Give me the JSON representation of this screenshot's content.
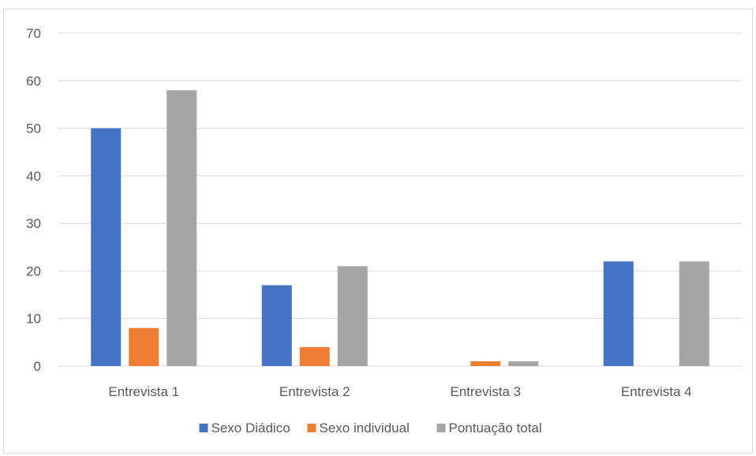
{
  "chart_data": {
    "type": "bar",
    "title": "",
    "xlabel": "",
    "ylabel": "",
    "categories": [
      "Entrevista 1",
      "Entrevista 2",
      "Entrevista 3",
      "Entrevista 4"
    ],
    "series": [
      {
        "name": "Sexo Diádico",
        "color": "#4472c4",
        "values": [
          50,
          17,
          0,
          22
        ]
      },
      {
        "name": "Sexo individual",
        "color": "#ed7d31",
        "values": [
          8,
          4,
          1,
          0
        ]
      },
      {
        "name": "Pontuação total",
        "color": "#a5a5a5",
        "values": [
          58,
          21,
          1,
          22
        ]
      }
    ],
    "ylim": [
      0,
      70
    ],
    "yticks": [
      0,
      10,
      20,
      30,
      40,
      50,
      60,
      70
    ],
    "grid": true,
    "legend": "bottom"
  }
}
